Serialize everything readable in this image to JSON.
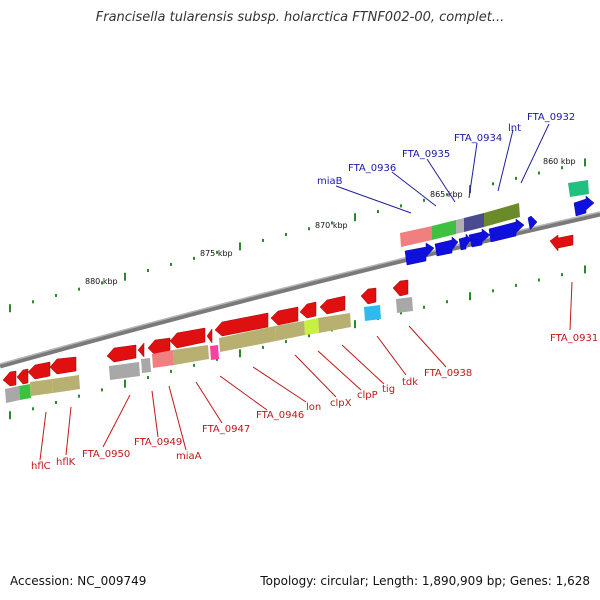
{
  "title": "Francisella tularensis subsp. holarctica FTNF002-00, complet...",
  "footer": {
    "accession": "Accession: NC_009749",
    "stats": "Topology: circular; Length: 1,890,909 bp; Genes: 1,628"
  },
  "colors": {
    "forward_gene": "#1010dd",
    "reverse_gene": "#e01010",
    "forward_label": "#1a1aa8",
    "reverse_label": "#c01818",
    "backbone": "#808080",
    "tick": "#2a8a2a"
  },
  "scale": {
    "labels": [
      "880 kbp",
      "875 kbp",
      "870 kbp",
      "865 kbp",
      "860 kbp"
    ]
  },
  "forward_genes": [
    "FTA_0932",
    "lnt",
    "FTA_0934",
    "FTA_0935",
    "FTA_0936",
    "miaB"
  ],
  "reverse_genes": [
    "FTA_0931",
    "FTA_0938",
    "tdk",
    "tig",
    "clpP",
    "clpX",
    "lon",
    "FTA_0946",
    "FTA_0947",
    "miaA",
    "FTA_0949",
    "FTA_0950",
    "hflK",
    "hflC"
  ]
}
